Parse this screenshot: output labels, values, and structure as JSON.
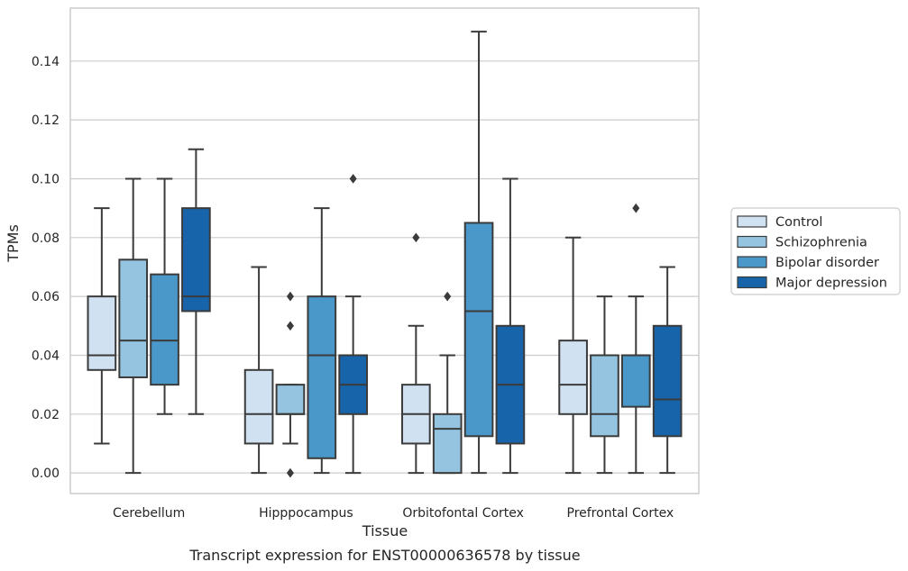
{
  "caption": "Transcript expression for ENST00000636578 by tissue",
  "chart_data": {
    "type": "boxplot",
    "xlabel": "Tissue",
    "ylabel": "TPMs",
    "ylim": [
      -0.007,
      0.158
    ],
    "yticks": [
      0.0,
      0.02,
      0.04,
      0.06,
      0.08,
      0.1,
      0.12,
      0.14
    ],
    "ytick_labels": [
      "0.00",
      "0.02",
      "0.04",
      "0.06",
      "0.08",
      "0.10",
      "0.12",
      "0.14"
    ],
    "grid": true,
    "legend_position": "right",
    "categories": [
      "Cerebellum",
      "Hipppocampus",
      "Orbitofontal Cortex",
      "Prefrontal Cortex"
    ],
    "series": [
      {
        "name": "Control",
        "color": "#d0e1f2",
        "boxes": [
          {
            "whislo": 0.01,
            "q1": 0.035,
            "med": 0.04,
            "q3": 0.06,
            "whishi": 0.09,
            "fliers": []
          },
          {
            "whislo": 0.0,
            "q1": 0.01,
            "med": 0.02,
            "q3": 0.035,
            "whishi": 0.07,
            "fliers": []
          },
          {
            "whislo": 0.0,
            "q1": 0.01,
            "med": 0.02,
            "q3": 0.03,
            "whishi": 0.05,
            "fliers": [
              0.08
            ]
          },
          {
            "whislo": 0.0,
            "q1": 0.02,
            "med": 0.03,
            "q3": 0.045,
            "whishi": 0.08,
            "fliers": []
          }
        ]
      },
      {
        "name": "Schizophrenia",
        "color": "#94c4df",
        "boxes": [
          {
            "whislo": 0.0,
            "q1": 0.0325,
            "med": 0.045,
            "q3": 0.0725,
            "whishi": 0.1,
            "fliers": []
          },
          {
            "whislo": 0.01,
            "q1": 0.02,
            "med": 0.02,
            "q3": 0.03,
            "whishi": 0.03,
            "fliers": [
              0.05,
              0.06,
              0.0
            ]
          },
          {
            "whislo": 0.0,
            "q1": 0.0,
            "med": 0.015,
            "q3": 0.02,
            "whishi": 0.04,
            "fliers": [
              0.06
            ]
          },
          {
            "whislo": 0.0,
            "q1": 0.0125,
            "med": 0.02,
            "q3": 0.04,
            "whishi": 0.06,
            "fliers": []
          }
        ]
      },
      {
        "name": "Bipolar disorder",
        "color": "#4a98c9",
        "boxes": [
          {
            "whislo": 0.02,
            "q1": 0.03,
            "med": 0.045,
            "q3": 0.0675,
            "whishi": 0.1,
            "fliers": []
          },
          {
            "whislo": 0.0,
            "q1": 0.005,
            "med": 0.04,
            "q3": 0.06,
            "whishi": 0.09,
            "fliers": []
          },
          {
            "whislo": 0.0,
            "q1": 0.0125,
            "med": 0.055,
            "q3": 0.085,
            "whishi": 0.15,
            "fliers": []
          },
          {
            "whislo": 0.0,
            "q1": 0.0225,
            "med": 0.04,
            "q3": 0.04,
            "whishi": 0.06,
            "fliers": [
              0.09
            ]
          }
        ]
      },
      {
        "name": "Major depression",
        "color": "#1764ab",
        "boxes": [
          {
            "whislo": 0.02,
            "q1": 0.055,
            "med": 0.06,
            "q3": 0.09,
            "whishi": 0.11,
            "fliers": []
          },
          {
            "whislo": 0.0,
            "q1": 0.02,
            "med": 0.03,
            "q3": 0.04,
            "whishi": 0.06,
            "fliers": [
              0.1
            ]
          },
          {
            "whislo": 0.0,
            "q1": 0.01,
            "med": 0.03,
            "q3": 0.05,
            "whishi": 0.1,
            "fliers": []
          },
          {
            "whislo": 0.0,
            "q1": 0.0125,
            "med": 0.025,
            "q3": 0.05,
            "whishi": 0.07,
            "fliers": []
          }
        ]
      }
    ]
  }
}
